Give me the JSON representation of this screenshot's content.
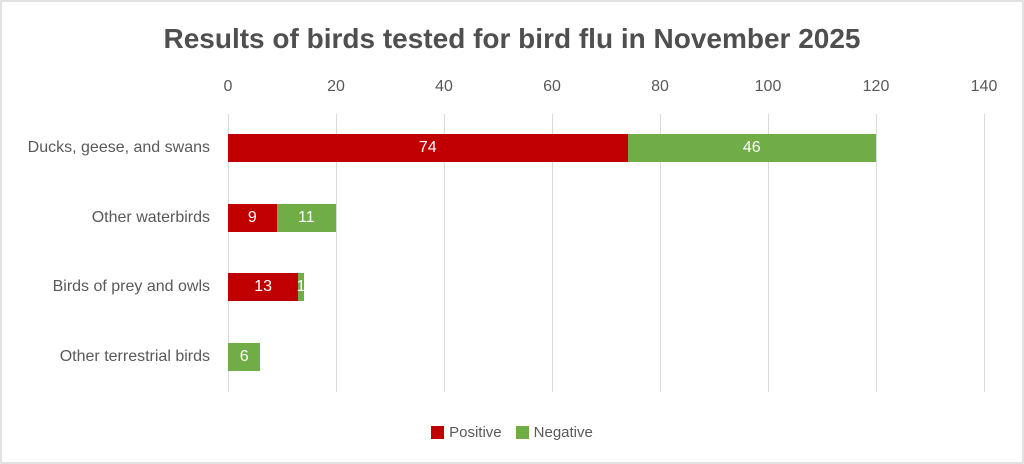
{
  "frame": {
    "background": "#ffffff",
    "border_color": "#e2e2e2"
  },
  "chart_data": {
    "type": "bar",
    "orientation": "horizontal",
    "stacked": true,
    "title": "Results of birds tested for bird flu in November 2025",
    "categories": [
      "Ducks, geese, and swans",
      "Other waterbirds",
      "Birds of prey and owls",
      "Other terrestrial birds"
    ],
    "series": [
      {
        "name": "Positive",
        "color": "#c00000",
        "values": [
          74,
          9,
          13,
          0
        ]
      },
      {
        "name": "Negative",
        "color": "#70ad47",
        "values": [
          46,
          11,
          1,
          6
        ]
      }
    ],
    "xlabel": "",
    "ylabel": "",
    "x_axis": {
      "position": "top",
      "min": 0,
      "max": 140,
      "tick_interval": 20,
      "ticks": [
        0,
        20,
        40,
        60,
        80,
        100,
        120,
        140
      ]
    },
    "grid": true,
    "gridline_color": "#d9d9d9",
    "data_labels": {
      "position": "inside-center",
      "color": "#ffffff"
    },
    "legend": {
      "position": "bottom",
      "entries": [
        "Positive",
        "Negative"
      ]
    },
    "text_colors": {
      "title": "#4f4f4f",
      "axis_ticks": "#595959",
      "category_labels": "#595959",
      "legend": "#595959"
    }
  }
}
